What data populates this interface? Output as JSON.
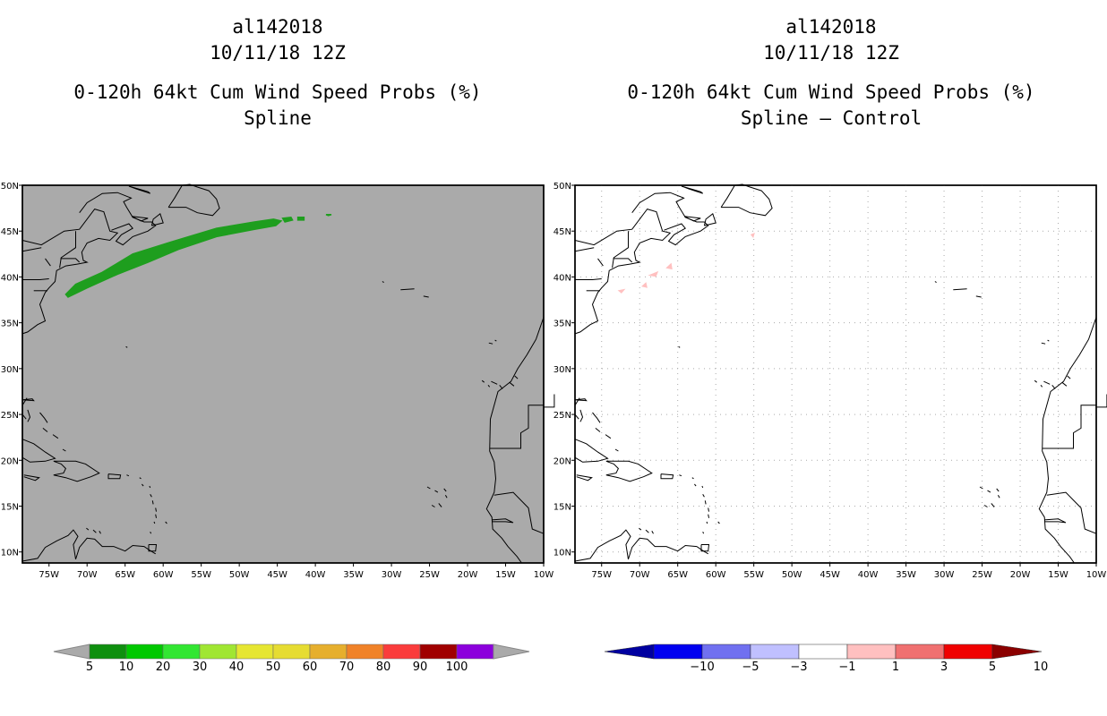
{
  "left": {
    "storm_id": "al142018",
    "datetime": "10/11/18 12Z",
    "product": "0-120h 64kt Cum Wind Speed Probs (%)",
    "subtitle": "Spline",
    "colorbar": {
      "labels": [
        "5",
        "10",
        "20",
        "30",
        "40",
        "50",
        "60",
        "70",
        "80",
        "90",
        "100"
      ],
      "colors": [
        "#0f8f0f",
        "#00c800",
        "#32e632",
        "#a0e632",
        "#e6e632",
        "#e6dc32",
        "#e6af2d",
        "#f08228",
        "#fa3c3c",
        "#a00000",
        "#8c00dc"
      ]
    }
  },
  "right": {
    "storm_id": "al142018",
    "datetime": "10/11/18 12Z",
    "product": "0-120h 64kt Cum Wind Speed Probs (%)",
    "subtitle": "Spline – Control",
    "colorbar": {
      "labels": [
        "−10",
        "−5",
        "−3",
        "−1",
        "1",
        "3",
        "5",
        "10"
      ],
      "colors": [
        "#0000a0",
        "#0000f0",
        "#7070f0",
        "#c0c0ff",
        "#ffffff",
        "#ffc0c0",
        "#f07070",
        "#f00000",
        "#8b0000"
      ]
    }
  },
  "axes": {
    "lon_labels": [
      "75W",
      "70W",
      "65W",
      "60W",
      "55W",
      "50W",
      "45W",
      "40W",
      "35W",
      "30W",
      "25W",
      "20W",
      "15W",
      "10W"
    ],
    "lat_labels": [
      "10N",
      "15N",
      "20N",
      "25N",
      "30N",
      "35N",
      "40N",
      "45N",
      "50N"
    ]
  },
  "colors": {
    "map_background_left": "#aaaaaa",
    "probability_swath": "#1e9e1e",
    "difference_swath": "#ffc0c0"
  }
}
